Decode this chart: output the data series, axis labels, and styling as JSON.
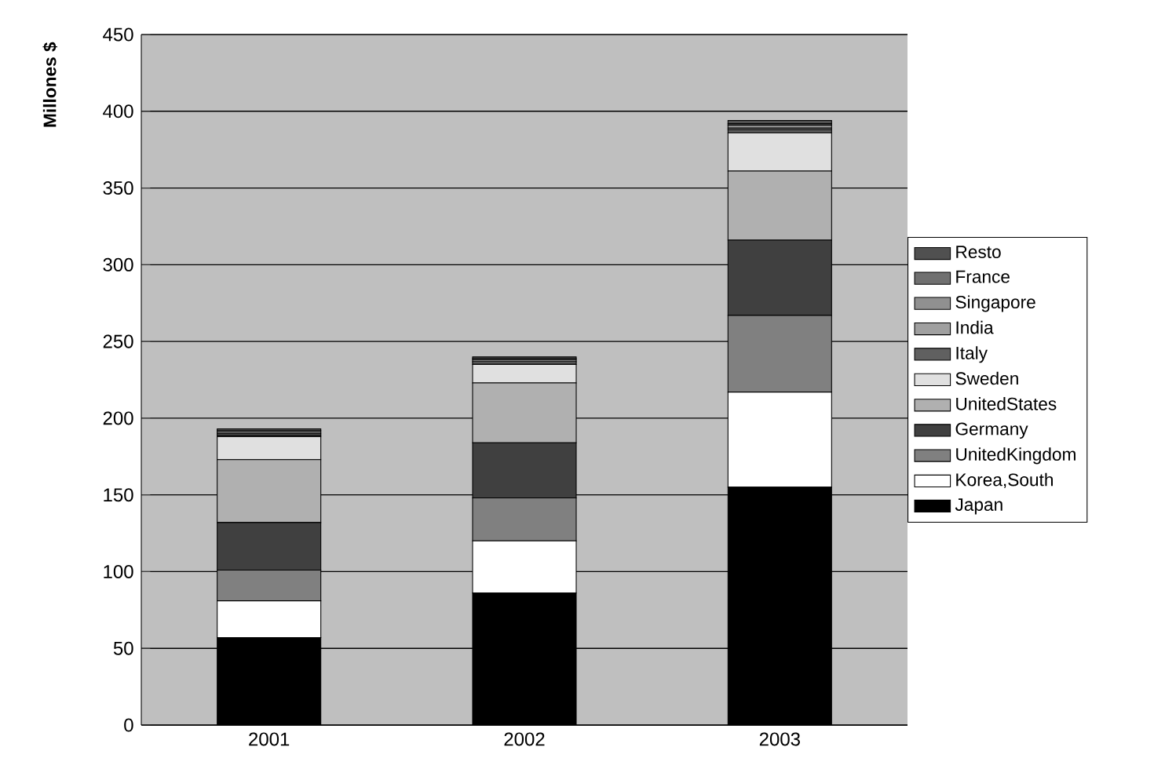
{
  "chart_data": {
    "type": "bar",
    "stacked": true,
    "ylabel": "Millones $",
    "categories": [
      "2001",
      "2002",
      "2003"
    ],
    "ylim": [
      0,
      450
    ],
    "yticks": [
      0,
      50,
      100,
      150,
      200,
      250,
      300,
      350,
      400,
      450
    ],
    "grid": "y",
    "legend": "right",
    "series": [
      {
        "name": "Japan",
        "color": "#000000",
        "values": [
          57,
          86,
          155
        ]
      },
      {
        "name": "Korea,South",
        "color": "#ffffff",
        "values": [
          24,
          34,
          62
        ]
      },
      {
        "name": "UnitedKingdom",
        "color": "#808080",
        "values": [
          20,
          28,
          50
        ]
      },
      {
        "name": "Germany",
        "color": "#404040",
        "values": [
          31,
          36,
          49
        ]
      },
      {
        "name": "UnitedStates",
        "color": "#b0b0b0",
        "values": [
          41,
          39,
          45
        ]
      },
      {
        "name": "Sweden",
        "color": "#e0e0e0",
        "values": [
          15,
          12,
          25
        ]
      },
      {
        "name": "Italy",
        "color": "#606060",
        "values": [
          1,
          1,
          2
        ]
      },
      {
        "name": "India",
        "color": "#a0a0a0",
        "values": [
          1,
          1,
          1
        ]
      },
      {
        "name": "Singapore",
        "color": "#909090",
        "values": [
          1,
          1,
          2
        ]
      },
      {
        "name": "France",
        "color": "#707070",
        "values": [
          1,
          1,
          1
        ]
      },
      {
        "name": "Resto",
        "color": "#505050",
        "values": [
          1,
          1,
          2
        ]
      }
    ]
  }
}
